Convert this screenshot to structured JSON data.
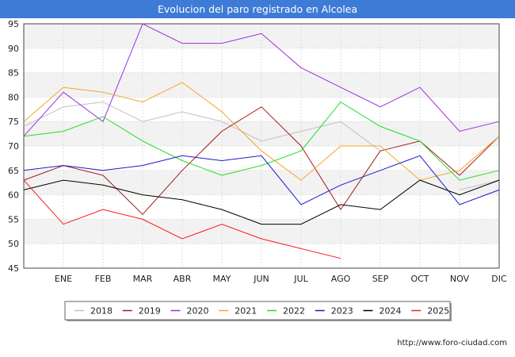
{
  "chart_data": {
    "type": "line",
    "title": "Evolucion del paro registrado en Alcolea",
    "xlabel": "",
    "ylabel": "",
    "categories": [
      "",
      "ENE",
      "FEB",
      "MAR",
      "ABR",
      "MAY",
      "JUN",
      "JUL",
      "AGO",
      "SEP",
      "OCT",
      "NOV",
      "DIC"
    ],
    "ylim": [
      45,
      95
    ],
    "yticks": [
      45,
      50,
      55,
      60,
      65,
      70,
      75,
      80,
      85,
      90,
      95
    ],
    "grid": true,
    "legend_position": "bottom",
    "series": [
      {
        "name": "2018",
        "color": "#c0c0c0",
        "values": [
          74,
          78,
          79,
          75,
          77,
          75,
          71,
          73,
          75,
          69,
          null,
          61,
          63
        ]
      },
      {
        "name": "2019",
        "color": "#a31a1a",
        "values": [
          63,
          66,
          64,
          56,
          65,
          73,
          78,
          70,
          57,
          69,
          71,
          64,
          72
        ]
      },
      {
        "name": "2020",
        "color": "#9b30e0",
        "values": [
          72,
          81,
          75,
          95,
          91,
          91,
          93,
          86,
          82,
          78,
          82,
          73,
          75
        ]
      },
      {
        "name": "2021",
        "color": "#f5a623",
        "values": [
          75,
          82,
          81,
          79,
          83,
          77,
          69,
          63,
          70,
          70,
          63,
          65,
          72
        ]
      },
      {
        "name": "2022",
        "color": "#22dd22",
        "values": [
          72,
          73,
          76,
          71,
          67,
          64,
          66,
          69,
          79,
          74,
          71,
          63,
          65
        ]
      },
      {
        "name": "2023",
        "color": "#1a1acc",
        "values": [
          65,
          66,
          65,
          66,
          68,
          67,
          68,
          58,
          62,
          65,
          68,
          58,
          61
        ]
      },
      {
        "name": "2024",
        "color": "#000000",
        "values": [
          61,
          63,
          62,
          60,
          59,
          57,
          54,
          54,
          58,
          57,
          63,
          60,
          63
        ]
      },
      {
        "name": "2025",
        "color": "#ff1a1a",
        "values": [
          63,
          54,
          57,
          55,
          51,
          54,
          51,
          49,
          47,
          null,
          null,
          null,
          null
        ]
      }
    ]
  },
  "footer": {
    "url": "http://www.foro-ciudad.com"
  }
}
